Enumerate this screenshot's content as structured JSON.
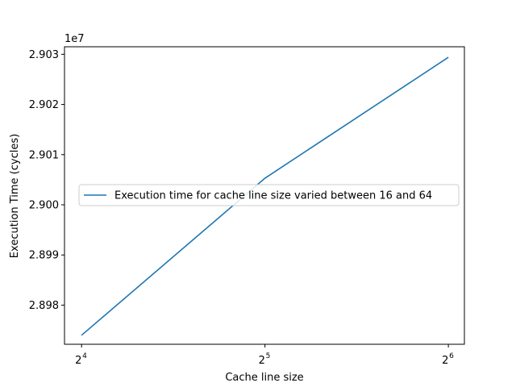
{
  "chart_data": {
    "type": "line",
    "xlabel": "Cache line size",
    "ylabel": "Execution Time (cycles)",
    "x_scale": "log2",
    "x_ticks": [
      {
        "value": 16,
        "base": "2",
        "exp": "4"
      },
      {
        "value": 32,
        "base": "2",
        "exp": "5"
      },
      {
        "value": 64,
        "base": "2",
        "exp": "6"
      }
    ],
    "y_offset_label": "1e7",
    "y_ticks": [
      {
        "value": 2.898,
        "label": "2.898"
      },
      {
        "value": 2.899,
        "label": "2.899"
      },
      {
        "value": 2.9,
        "label": "2.900"
      },
      {
        "value": 2.901,
        "label": "2.901"
      },
      {
        "value": 2.902,
        "label": "2.902"
      },
      {
        "value": 2.903,
        "label": "2.903"
      }
    ],
    "xlim": [
      15,
      68
    ],
    "ylim": [
      2.89722,
      2.90315
    ],
    "grid": false,
    "legend_position": "center-right",
    "series": [
      {
        "name": "Execution time for cache line size varied between 16 and 64",
        "color": "#1f77b4",
        "x": [
          16,
          32,
          64
        ],
        "y": [
          2.8974,
          2.90053,
          2.90294
        ]
      }
    ]
  }
}
